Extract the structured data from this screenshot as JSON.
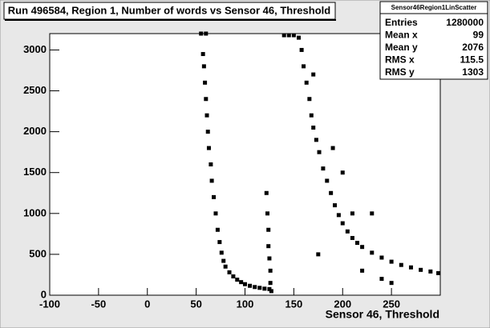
{
  "chart_data": {
    "type": "scatter",
    "title": "Run 496584, Region 1, Number of words vs Sensor 46, Threshold",
    "x_label": "Sensor 46, Threshold",
    "color": "#000000",
    "xlim": [
      -100,
      300
    ],
    "ylim": [
      0,
      3200
    ],
    "xticks": [
      -100,
      -50,
      0,
      50,
      100,
      150,
      200,
      250
    ],
    "yticks": [
      0,
      500,
      1000,
      1500,
      2000,
      2500,
      3000
    ],
    "x": [
      55,
      60,
      57,
      58,
      59,
      60,
      61,
      62,
      63,
      65,
      66,
      68,
      70,
      72,
      74,
      76,
      78,
      80,
      84,
      88,
      92,
      96,
      100,
      105,
      110,
      115,
      120,
      125,
      122,
      123,
      124,
      124,
      125,
      126,
      126,
      127,
      140,
      145,
      150,
      155,
      158,
      160,
      163,
      166,
      168,
      170,
      173,
      176,
      180,
      184,
      188,
      192,
      196,
      200,
      205,
      210,
      215,
      220,
      230,
      240,
      250,
      260,
      270,
      280,
      290,
      298,
      190,
      200,
      210,
      220,
      240,
      250,
      230,
      170,
      175
    ],
    "values": [
      3200,
      3200,
      2950,
      2800,
      2600,
      2400,
      2200,
      2000,
      1800,
      1600,
      1400,
      1200,
      1000,
      800,
      650,
      520,
      420,
      350,
      280,
      230,
      190,
      160,
      135,
      115,
      100,
      90,
      80,
      75,
      1250,
      1000,
      800,
      600,
      450,
      300,
      150,
      50,
      3180,
      3180,
      3180,
      3150,
      3000,
      2800,
      2600,
      2400,
      2200,
      2050,
      1900,
      1750,
      1550,
      1400,
      1250,
      1100,
      980,
      880,
      780,
      700,
      640,
      590,
      520,
      460,
      410,
      370,
      340,
      310,
      290,
      270,
      1800,
      1500,
      1000,
      300,
      200,
      150,
      1000,
      2700,
      500
    ],
    "stats": {
      "name": "Sensor46Region1LinScatter",
      "rows": [
        [
          "Entries",
          1280000
        ],
        [
          "Mean x",
          99
        ],
        [
          "Mean y",
          2076
        ],
        [
          "RMS x",
          115.5
        ],
        [
          "RMS y",
          1303
        ]
      ]
    }
  }
}
